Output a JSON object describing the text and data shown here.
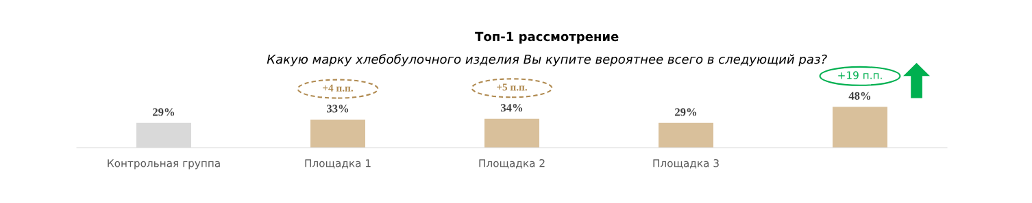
{
  "chart_data": {
    "type": "bar",
    "title": "Топ-1 рассмотрение",
    "subtitle": "Какую марку хлебобулочного изделия Вы купите вероятнее всего в следующий раз?",
    "categories": [
      "Контрольная группа",
      "Площадка 1",
      "Площадка 2",
      "Площадка 3",
      null
    ],
    "values": [
      29,
      33,
      34,
      29,
      48
    ],
    "colors": [
      "#d9d9d9",
      "#d9c09b",
      "#d9c09b",
      "#d9c09b",
      "#d9c09b"
    ],
    "value_labels": [
      "29%",
      "33%",
      "34%",
      "29%",
      "48%"
    ],
    "annotations": [
      "+4 п.п.",
      "+5 п.п.",
      "+19 п.п."
    ]
  }
}
